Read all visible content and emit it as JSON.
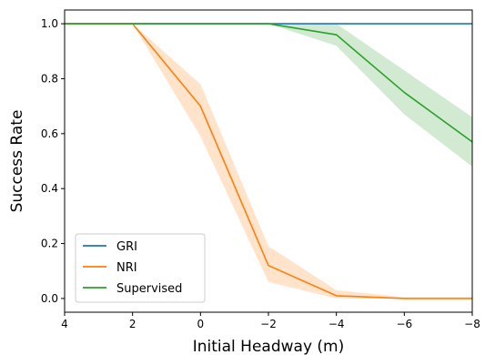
{
  "chart_data": {
    "type": "line",
    "title": "",
    "xlabel": "Initial Headway (m)",
    "ylabel": "Success Rate",
    "x": [
      4,
      2,
      0,
      -2,
      -4,
      -6,
      -8
    ],
    "x_ticks": [
      4,
      2,
      0,
      -2,
      -4,
      -6,
      -8
    ],
    "x_tick_labels": [
      "4",
      "2",
      "0",
      "−2",
      "−4",
      "−6",
      "−8"
    ],
    "xlim": [
      4,
      -8
    ],
    "x_inverted": true,
    "ylim": [
      -0.05,
      1.05
    ],
    "y_ticks": [
      0.0,
      0.2,
      0.4,
      0.6,
      0.8,
      1.0
    ],
    "y_tick_labels": [
      "0.0",
      "0.2",
      "0.4",
      "0.6",
      "0.8",
      "1.0"
    ],
    "grid": false,
    "legend_position": "lower-left",
    "series": [
      {
        "name": "GRI",
        "color": "#1f77b4",
        "x": [
          4,
          2,
          0,
          -2,
          -4,
          -6,
          -8
        ],
        "values": [
          1.0,
          1.0,
          1.0,
          1.0,
          1.0,
          1.0,
          1.0
        ],
        "lower": [
          1.0,
          1.0,
          1.0,
          1.0,
          1.0,
          1.0,
          1.0
        ],
        "upper": [
          1.0,
          1.0,
          1.0,
          1.0,
          1.0,
          1.0,
          1.0
        ]
      },
      {
        "name": "NRI",
        "color": "#ff7f0e",
        "x": [
          4,
          2,
          0,
          -2,
          -4,
          -6,
          -8
        ],
        "values": [
          1.0,
          1.0,
          0.7,
          0.12,
          0.01,
          0.0,
          0.0
        ],
        "lower": [
          1.0,
          1.0,
          0.59,
          0.06,
          0.0,
          0.0,
          0.0
        ],
        "upper": [
          1.0,
          1.0,
          0.78,
          0.19,
          0.03,
          0.005,
          0.005
        ]
      },
      {
        "name": "Supervised",
        "color": "#2ca02c",
        "x": [
          4,
          2,
          0,
          -2,
          -4,
          -6,
          -8
        ],
        "values": [
          1.0,
          1.0,
          1.0,
          1.0,
          0.96,
          0.75,
          0.57
        ],
        "lower": [
          1.0,
          1.0,
          1.0,
          1.0,
          0.92,
          0.67,
          0.48
        ],
        "upper": [
          1.0,
          1.0,
          1.0,
          1.0,
          1.0,
          0.83,
          0.66
        ]
      }
    ]
  }
}
